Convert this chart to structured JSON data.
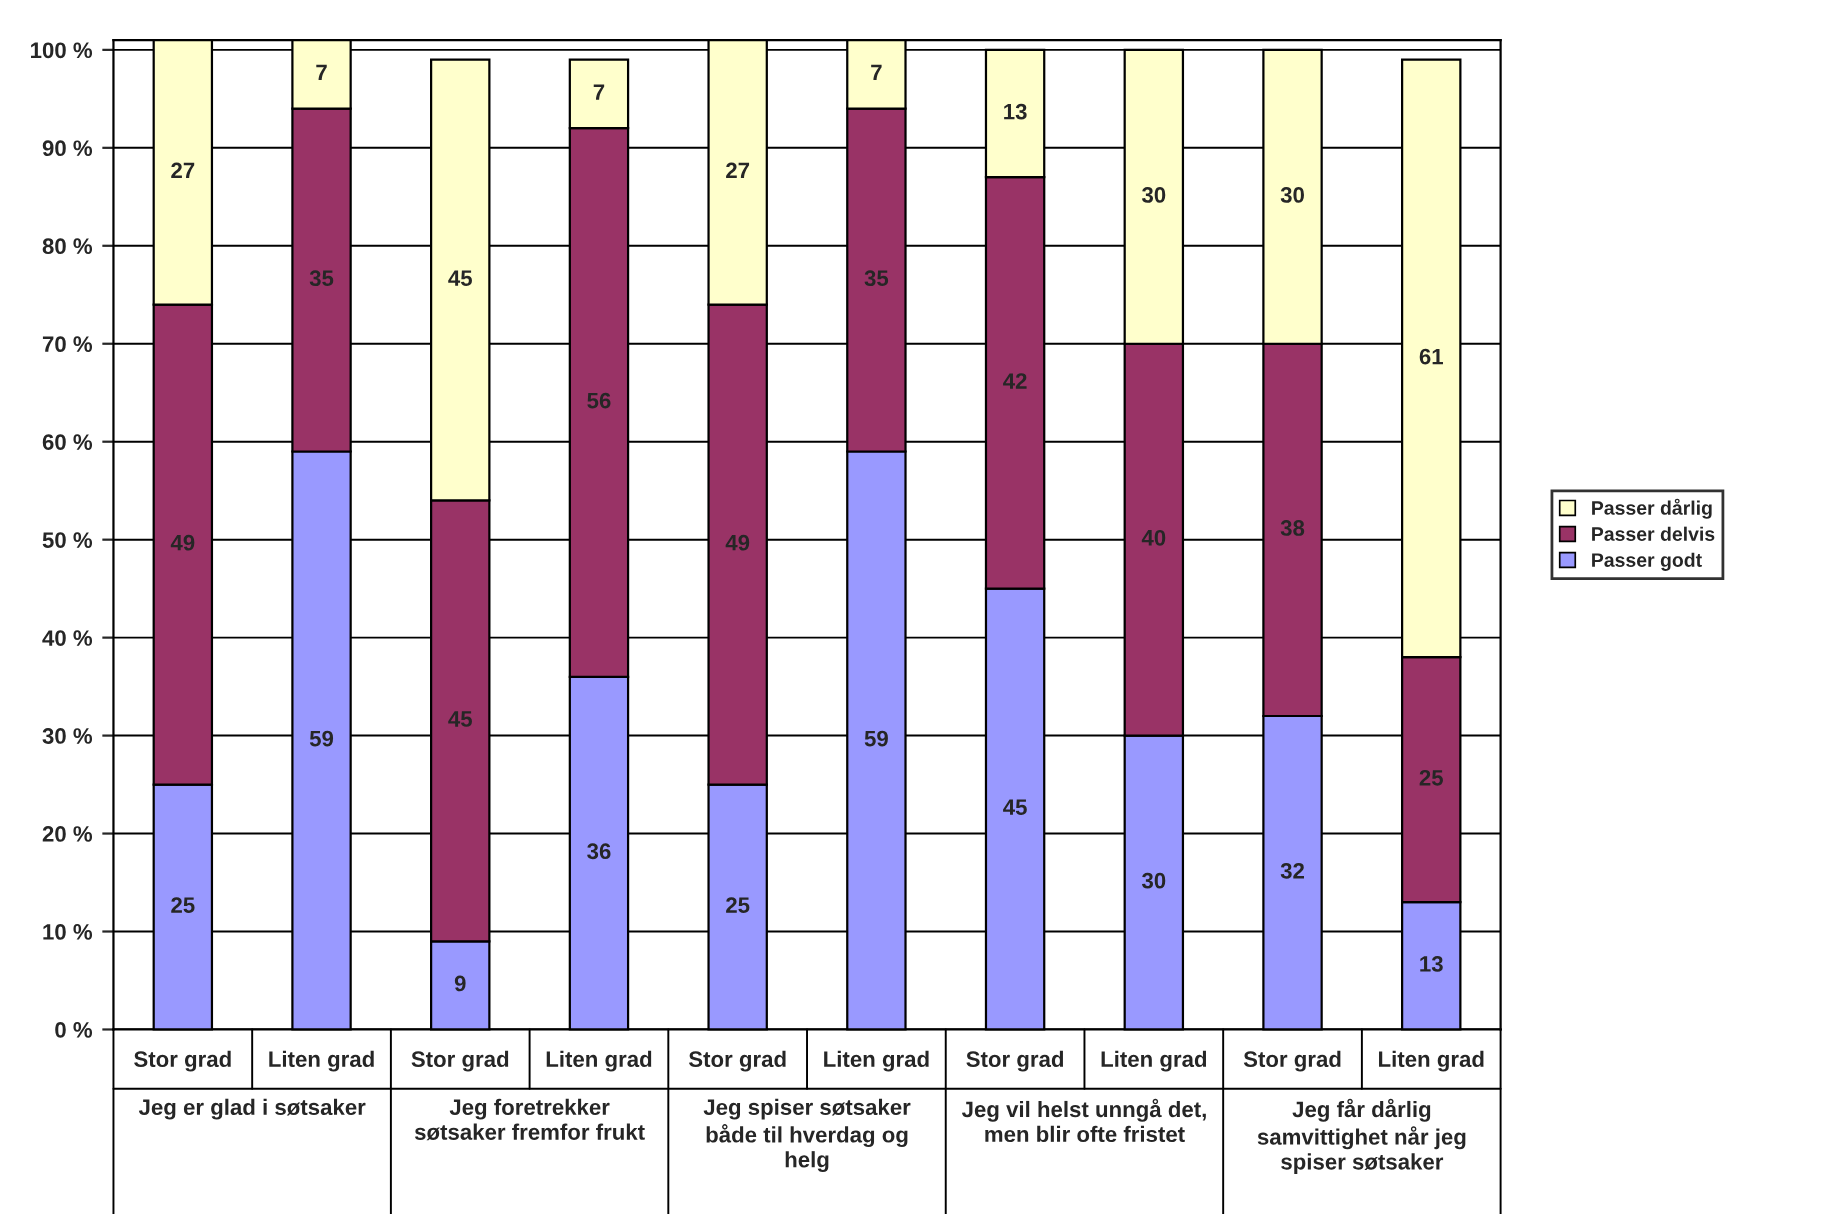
{
  "chart_data": {
    "type": "bar",
    "stacked": true,
    "categories": [
      "Stor grad",
      "Liten grad",
      "Stor grad",
      "Liten grad",
      "Stor grad",
      "Liten grad",
      "Stor grad",
      "Liten grad",
      "Stor grad",
      "Liten grad"
    ],
    "series": [
      {
        "name": "Passer godt",
        "color": "#9999ff",
        "values": [
          25,
          59,
          9,
          36,
          25,
          59,
          45,
          30,
          32,
          13
        ]
      },
      {
        "name": "Passer delvis",
        "color": "#993366",
        "values": [
          49,
          35,
          45,
          56,
          49,
          35,
          42,
          40,
          38,
          25
        ]
      },
      {
        "name": "Passer dårlig",
        "color": "#ffffcc",
        "values": [
          27,
          7,
          45,
          7,
          27,
          7,
          13,
          30,
          30,
          61
        ]
      }
    ],
    "annotations": [
      "Jeg er glad i søtsaker",
      "Jeg foretrekker\nsøtsaker fremfor frukt",
      "Jeg spiser søtsaker\nbåde til hverdag og\nhelg",
      "Jeg vil helst unngå det,\nmen blir ofte fristet",
      "Jeg får dårlig\nsamvittighet når jeg\nspiser søtsaker"
    ],
    "ylim": [
      0,
      101
    ],
    "yticks": [
      {
        "value": 0,
        "label": "0 %"
      },
      {
        "value": 10,
        "label": "10 %"
      },
      {
        "value": 20,
        "label": "20 %"
      },
      {
        "value": 30,
        "label": "30 %"
      },
      {
        "value": 40,
        "label": "40 %"
      },
      {
        "value": 50,
        "label": "50 %"
      },
      {
        "value": 60,
        "label": "60 %"
      },
      {
        "value": 70,
        "label": "70 %"
      },
      {
        "value": 80,
        "label": "80 %"
      },
      {
        "value": 90,
        "label": "90 %"
      },
      {
        "value": 100,
        "label": "100 %"
      }
    ],
    "grid": "y",
    "legend": "right",
    "data_labels": true
  }
}
